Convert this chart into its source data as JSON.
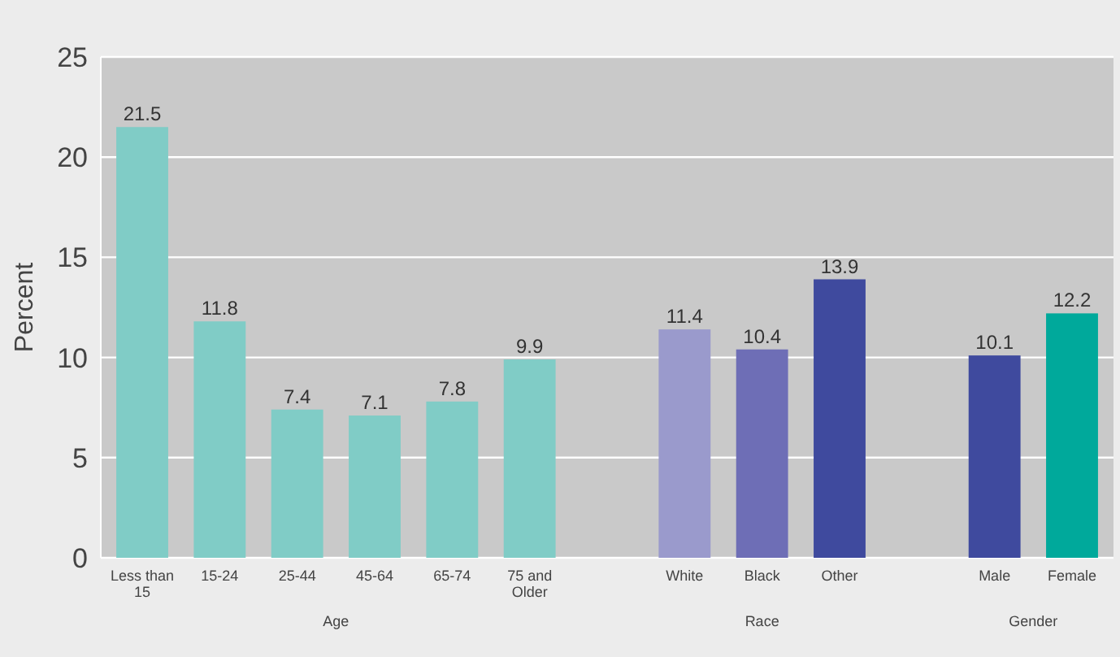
{
  "chart_data": {
    "type": "bar",
    "ylabel": "Percent",
    "categories": [
      "Less than 15",
      "15-24",
      "25-44",
      "45-64",
      "65-74",
      "75 and Older",
      null,
      "White",
      "Black",
      "Other",
      null,
      "Male",
      "Female"
    ],
    "values": [
      21.5,
      11.8,
      7.4,
      7.1,
      7.8,
      9.9,
      null,
      11.4,
      10.4,
      13.9,
      null,
      10.1,
      12.2
    ],
    "colors": [
      "#80ccc6",
      "#80ccc6",
      "#80ccc6",
      "#80ccc6",
      "#80ccc6",
      "#80ccc6",
      null,
      "#9a9acc",
      "#6e6eb6",
      "#3f4a9e",
      null,
      "#3f4a9e",
      "#00a99b"
    ],
    "ylim": [
      0,
      25
    ],
    "yticks": [
      0,
      5,
      10,
      15,
      20,
      25
    ],
    "grid": "y",
    "data_labels": true,
    "annotations": [
      "Age",
      "Race",
      "Gender"
    ]
  }
}
